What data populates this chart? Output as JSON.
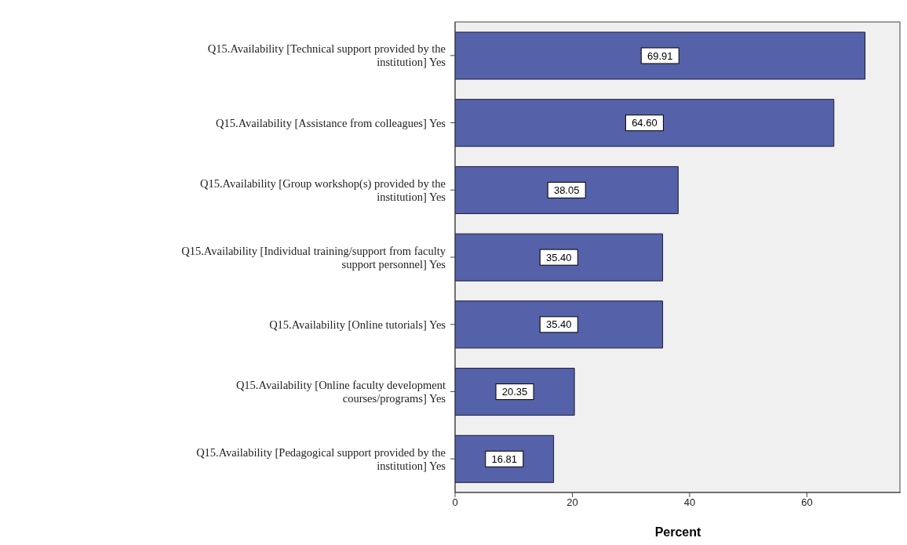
{
  "chart_data": {
    "type": "bar",
    "orientation": "horizontal",
    "categories": [
      "Q15.Availability [Technical support provided by the institution] Yes",
      "Q15.Availability [Assistance from colleagues] Yes",
      "Q15.Availability [Group workshop(s) provided by the institution] Yes",
      "Q15.Availability [Individual training/support from faculty support personnel] Yes",
      "Q15.Availability [Online tutorials] Yes",
      "Q15.Availability [Online faculty development courses/programs] Yes",
      "Q15.Availability [Pedagogical support provided by the institution] Yes"
    ],
    "values": [
      69.91,
      64.6,
      38.05,
      35.4,
      35.4,
      20.35,
      16.81
    ],
    "color": "#5561a8",
    "xlim": [
      0,
      76
    ],
    "xticks": [
      0,
      20,
      40,
      60
    ],
    "value_labels": [
      "69.91",
      "64.60",
      "38.05",
      "35.40",
      "35.40",
      "20.35",
      "16.81"
    ],
    "xlabel": "Percent",
    "grid": false,
    "legend": false
  }
}
